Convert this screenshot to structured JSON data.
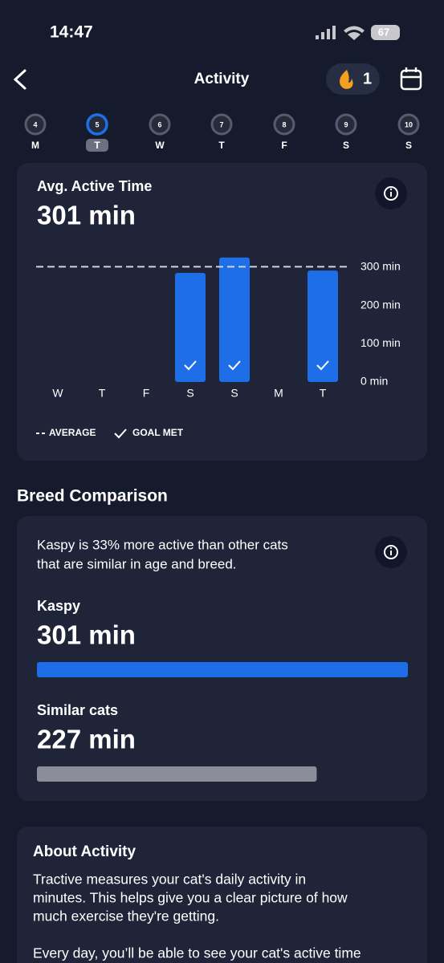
{
  "status_bar": {
    "time": "14:47",
    "battery": "67"
  },
  "header": {
    "title": "Activity",
    "streak": "1"
  },
  "days": {
    "numbers": [
      "4",
      "5",
      "6",
      "7",
      "8",
      "9",
      "10"
    ],
    "letters": [
      "M",
      "T",
      "W",
      "T",
      "F",
      "S",
      "S"
    ],
    "selected": 1
  },
  "activity_card": {
    "title": "Avg. Active Time",
    "value_label": "301 min",
    "chart_data": {
      "type": "bar",
      "categories": [
        "W",
        "T",
        "F",
        "S",
        "S",
        "M",
        "T"
      ],
      "values": [
        null,
        null,
        null,
        285,
        325,
        null,
        291
      ],
      "goal_met": [
        false,
        false,
        false,
        true,
        true,
        false,
        true
      ],
      "average": 301,
      "color": "#1e6ee8",
      "ylim": [
        0,
        350
      ],
      "yticks": [
        {
          "value": 0,
          "label": "0 min"
        },
        {
          "value": 100,
          "label": "100 min"
        },
        {
          "value": 200,
          "label": "200 min"
        },
        {
          "value": 300,
          "label": "300 min"
        }
      ],
      "legend": {
        "average": "AVERAGE",
        "goal_met": "GOAL MET"
      }
    }
  },
  "breed_section": {
    "title": "Breed Comparison",
    "description": [
      "Kaspy is 33% more active than other cats",
      "that are similar in age and breed."
    ],
    "chart_data": {
      "type": "hbar",
      "categories": [
        "Kaspy",
        "Similar cats"
      ],
      "values": [
        301,
        227
      ],
      "value_labels": [
        "301 min",
        "227 min"
      ],
      "colors": [
        "#1e6ee8",
        "#8b8d99"
      ]
    }
  },
  "about": {
    "title": "About Activity",
    "lines": [
      "Tractive measures your cat's daily activity in",
      "minutes. This helps give you a clear picture of how",
      "much exercise they're getting.",
      "",
      "Every day, you’ll be able to see your cat's active time"
    ]
  }
}
